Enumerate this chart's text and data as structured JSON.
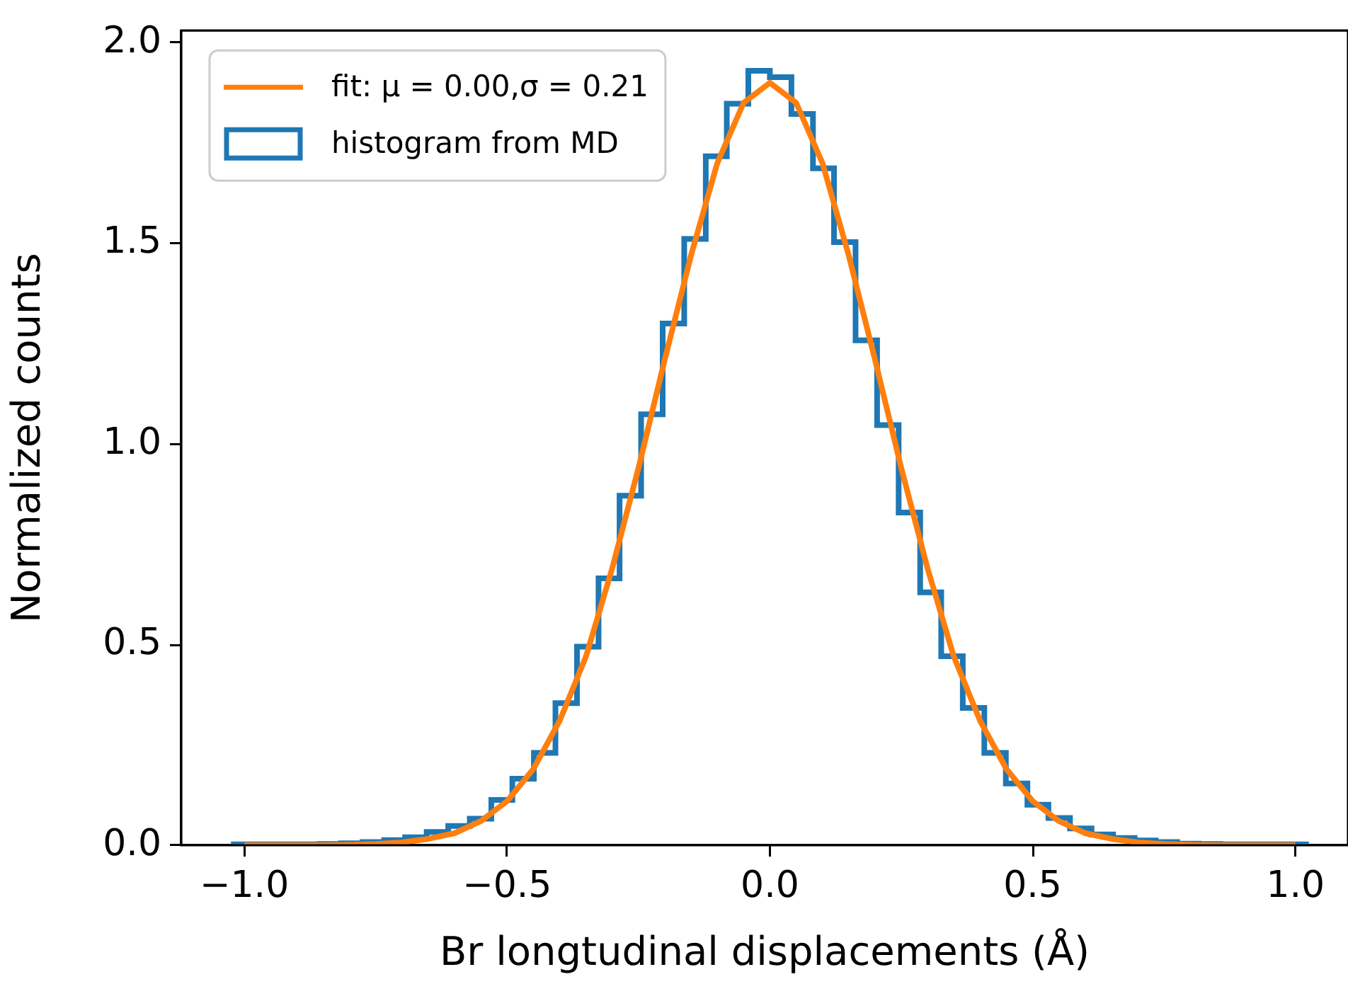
{
  "chart_data": {
    "type": "histogram",
    "xlabel": "Br longtudinal displacements (Å)",
    "ylabel": "Normalized counts",
    "xlim": [
      -1.12,
      1.1
    ],
    "ylim": [
      0,
      2.03
    ],
    "xticks": [
      {
        "value": -1,
        "label": "−1.0"
      },
      {
        "value": -0.5,
        "label": "−0.5"
      },
      {
        "value": 0,
        "label": "0.0"
      },
      {
        "value": 0.5,
        "label": "0.5"
      },
      {
        "value": 1,
        "label": "1.0"
      }
    ],
    "yticks": [
      {
        "value": 0,
        "label": "0.0"
      },
      {
        "value": 0.5,
        "label": "0.5"
      },
      {
        "value": 1,
        "label": "1.0"
      },
      {
        "value": 1.5,
        "label": "1.5"
      },
      {
        "value": 2,
        "label": "2.0"
      }
    ],
    "legend": "top left",
    "grid": false,
    "series": [
      {
        "type": "line",
        "name": "fit: μ = 0.00,σ = 0.21",
        "color": "#ff7f0e",
        "x": [
          -1,
          -0.95,
          -0.9,
          -0.85,
          -0.8,
          -0.75,
          -0.7,
          -0.65,
          -0.6,
          -0.55,
          -0.5,
          -0.45,
          -0.4,
          -0.35,
          -0.3,
          -0.25,
          -0.2,
          -0.15,
          -0.1,
          -0.05,
          0,
          0.05,
          0.1,
          0.15,
          0.2,
          0.25,
          0.3,
          0.35,
          0.4,
          0.45,
          0.5,
          0.55,
          0.6,
          0.65,
          0.7,
          0.75,
          0.8,
          0.85,
          0.9,
          0.95,
          1
        ],
        "values": [
          0,
          0,
          0,
          0,
          0.001,
          0.003,
          0.007,
          0.016,
          0.03,
          0.06,
          0.11,
          0.19,
          0.31,
          0.47,
          0.69,
          0.94,
          1.21,
          1.47,
          1.7,
          1.85,
          1.9,
          1.85,
          1.7,
          1.47,
          1.21,
          0.94,
          0.69,
          0.47,
          0.31,
          0.19,
          0.11,
          0.06,
          0.03,
          0.016,
          0.007,
          0.003,
          0.001,
          0,
          0,
          0,
          0
        ]
      },
      {
        "name": "histogram from MD",
        "color": "#1f77b4",
        "bins": [
          -1.02,
          -0.979,
          -0.938,
          -0.898,
          -0.857,
          -0.816,
          -0.775,
          -0.734,
          -0.694,
          -0.653,
          -0.612,
          -0.571,
          -0.53,
          -0.49,
          -0.449,
          -0.408,
          -0.367,
          -0.326,
          -0.286,
          -0.245,
          -0.204,
          -0.163,
          -0.122,
          -0.082,
          -0.041,
          0,
          0.041,
          0.082,
          0.122,
          0.163,
          0.204,
          0.245,
          0.286,
          0.326,
          0.367,
          0.408,
          0.449,
          0.49,
          0.53,
          0.571,
          0.612,
          0.653,
          0.694,
          0.734,
          0.775,
          0.816,
          0.857,
          0.898,
          0.938,
          0.979,
          1.02
        ],
        "values": [
          0.002,
          0.002,
          0.002,
          0.002,
          0.003,
          0.005,
          0.008,
          0.013,
          0.02,
          0.033,
          0.048,
          0.066,
          0.113,
          0.166,
          0.23,
          0.354,
          0.495,
          0.665,
          0.871,
          1.074,
          1.3,
          1.511,
          1.717,
          1.848,
          1.93,
          1.914,
          1.822,
          1.687,
          1.503,
          1.258,
          1.047,
          0.829,
          0.63,
          0.471,
          0.342,
          0.23,
          0.154,
          0.101,
          0.068,
          0.042,
          0.027,
          0.018,
          0.012,
          0.008,
          0.004,
          0.003,
          0.002,
          0.002,
          0.002,
          0.002
        ]
      }
    ]
  }
}
